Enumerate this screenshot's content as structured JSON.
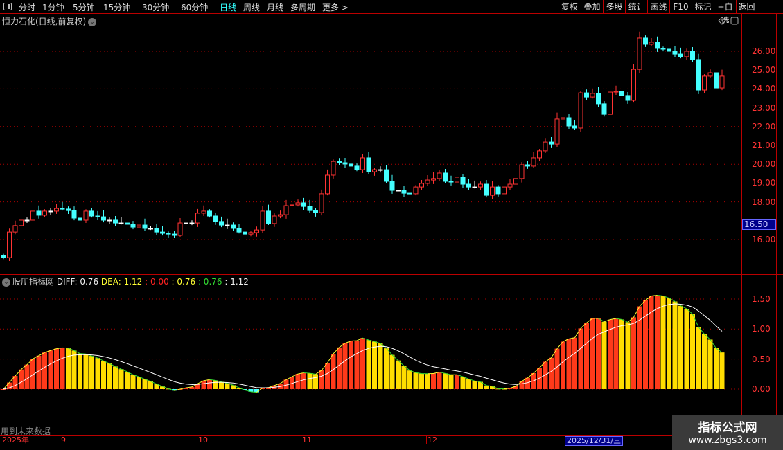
{
  "toolbar": {
    "periods": [
      "分时",
      "1分钟",
      "5分钟",
      "15分钟",
      "30分钟",
      "60分钟",
      "日线",
      "周线",
      "月线",
      "多周期",
      "更多 >"
    ],
    "active_period": "日线",
    "buttons": [
      "复权",
      "叠加",
      "多股",
      "统计",
      "画线",
      "F10",
      "标记",
      "+自选",
      "返回"
    ]
  },
  "chart_title": "恒力石化(日线,前复权)",
  "indicator": {
    "name": "股朋指标网",
    "diff_label": "DIFF: 0.76",
    "dea_label": "DEA: 1.12",
    "v3": ": 0.00",
    "v4": ": 0.76",
    "v5": ": 0.76",
    "v6": ": 1.12"
  },
  "future_note": "用到未来数据",
  "current_price_label": "16.50",
  "date_axis": {
    "year": "2025年",
    "months": [
      "9",
      "10",
      "11",
      "12"
    ],
    "cursor_date": "2025/12/31/三"
  },
  "watermark": {
    "line1": "指标公式网",
    "line2": "www.zbgs3.com"
  },
  "colors": {
    "up": "#ff3333",
    "down": "#44ffff",
    "doji": "#ffffff",
    "diff_line_up": "#ffff33",
    "diff_line_down": "#33dd33",
    "dea_line": "#ffffff",
    "bar_pos_rise": "#ff3a1a",
    "bar_pos_fall": "#ffdd00",
    "bar_neg_fall": "#44ffff",
    "bar_neg_rise": "#cc44ff"
  },
  "chart_data": [
    {
      "type": "candlestick",
      "y_ticks": [
        "26.00",
        "25.00",
        "24.00",
        "23.00",
        "22.00",
        "21.00",
        "20.00",
        "19.00",
        "18.00",
        "16.00"
      ],
      "ylim": [
        14.9,
        27.2
      ],
      "close": [
        15.04,
        16.4,
        16.74,
        17.03,
        17.03,
        17.51,
        17.29,
        17.51,
        17.51,
        17.65,
        17.62,
        17.54,
        17.14,
        17.03,
        17.51,
        17.25,
        17.21,
        17.03,
        17.03,
        16.88,
        16.88,
        16.81,
        16.66,
        16.77,
        16.59,
        16.59,
        16.4,
        16.33,
        16.29,
        16.22,
        16.88,
        16.88,
        16.88,
        17.4,
        17.51,
        17.25,
        16.96,
        16.77,
        16.77,
        16.59,
        16.4,
        16.29,
        16.37,
        16.51,
        17.51,
        16.85,
        17.25,
        17.32,
        17.8,
        17.84,
        17.95,
        17.76,
        17.54,
        17.43,
        18.43,
        19.42,
        20.15,
        20.08,
        20.01,
        19.9,
        19.71,
        20.34,
        19.6,
        19.71,
        19.71,
        19.09,
        18.61,
        18.61,
        18.46,
        18.43,
        18.79,
        18.98,
        19.16,
        19.24,
        19.53,
        19.09,
        19.05,
        19.31,
        18.94,
        18.79,
        18.79,
        18.94,
        18.35,
        18.79,
        18.43,
        18.79,
        18.94,
        19.24,
        19.97,
        19.9,
        20.34,
        20.71,
        21.18,
        21.07,
        22.4,
        22.47,
        22.03,
        21.92,
        23.79,
        23.57,
        23.76,
        23.21,
        22.65,
        23.83,
        23.87,
        23.65,
        23.39,
        25.04,
        26.7,
        26.37,
        26.48,
        26.15,
        26.11,
        26.0,
        25.85,
        25.71,
        26.0,
        25.56,
        23.94,
        24.68,
        24.86,
        24.05,
        24.68
      ]
    },
    {
      "type": "macd",
      "y_ticks": [
        "1.50",
        "1.00",
        "0.50",
        "0.00"
      ],
      "ylim": [
        -0.45,
        1.75
      ]
    }
  ]
}
